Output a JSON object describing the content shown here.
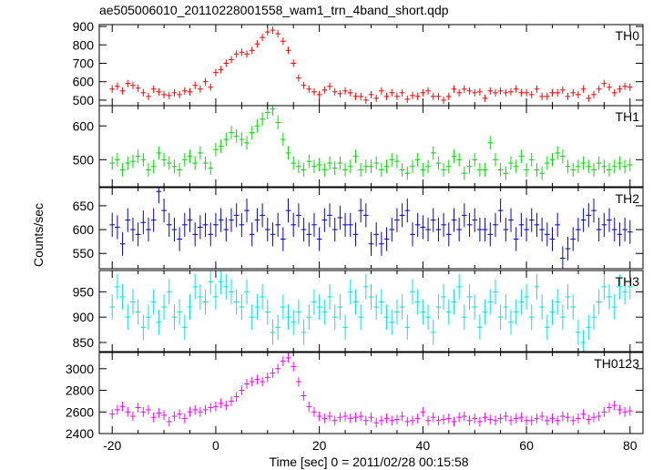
{
  "chart_data": {
    "type": "line",
    "title": "ae505006010_20110228001558_wam1_trn_4band_short.qdp",
    "xlabel": "Time [sec] 0 = 2011/02/28 00:15:58",
    "ylabel": "Counts/sec",
    "xlim": [
      -22.5,
      82.5
    ],
    "x_ticks": [
      -20,
      0,
      20,
      40,
      60,
      80
    ],
    "bin_width": 1,
    "x_start": -20,
    "panels": [
      {
        "name": "TH0",
        "color": "#ff0000",
        "ylim": [
          470,
          910
        ],
        "y_ticks": [
          500,
          600,
          700,
          800,
          900
        ],
        "error": 20,
        "values": [
          560,
          575,
          550,
          590,
          580,
          565,
          540,
          520,
          560,
          545,
          530,
          525,
          540,
          530,
          550,
          545,
          580,
          560,
          600,
          570,
          650,
          665,
          700,
          720,
          750,
          760,
          750,
          770,
          805,
          840,
          870,
          880,
          860,
          820,
          770,
          700,
          620,
          580,
          560,
          545,
          530,
          555,
          575,
          545,
          535,
          550,
          540,
          520,
          520,
          500,
          530,
          510,
          550,
          520,
          540,
          520,
          540,
          505,
          525,
          520,
          540,
          550,
          520,
          520,
          500,
          520,
          560,
          540,
          560,
          550,
          540,
          545,
          510,
          550,
          540,
          550,
          540,
          545,
          560,
          540,
          540,
          530,
          560,
          520,
          520,
          540,
          540,
          555,
          520,
          540,
          530,
          560,
          510,
          530,
          560,
          590,
          570,
          540,
          560,
          575,
          570
        ]
      },
      {
        "name": "TH1",
        "color": "#00dd00",
        "ylim": [
          420,
          660
        ],
        "y_ticks": [
          500,
          600
        ],
        "error": 20,
        "values": [
          490,
          500,
          470,
          490,
          495,
          510,
          500,
          470,
          480,
          520,
          500,
          490,
          480,
          470,
          500,
          510,
          490,
          520,
          490,
          475,
          530,
          540,
          560,
          580,
          570,
          560,
          550,
          580,
          600,
          620,
          640,
          650,
          610,
          560,
          520,
          490,
          480,
          470,
          495,
          480,
          485,
          470,
          490,
          475,
          490,
          470,
          480,
          510,
          470,
          480,
          480,
          490,
          470,
          480,
          500,
          495,
          470,
          460,
          480,
          500,
          470,
          480,
          520,
          490,
          470,
          480,
          510,
          500,
          460,
          480,
          500,
          470,
          470,
          550,
          500,
          470,
          460,
          490,
          480,
          510,
          470,
          500,
          470,
          460,
          490,
          500,
          520,
          510,
          480,
          470,
          480,
          490,
          480,
          470,
          490,
          480,
          470,
          480,
          490,
          480,
          485
        ]
      },
      {
        "name": "TH2",
        "color": "#0000cc",
        "ylim": [
          518,
          688
        ],
        "y_ticks": [
          550,
          600,
          650
        ],
        "error": 25,
        "values": [
          610,
          605,
          570,
          620,
          600,
          590,
          615,
          600,
          620,
          680,
          640,
          610,
          600,
          580,
          610,
          620,
          590,
          605,
          610,
          590,
          610,
          620,
          600,
          620,
          630,
          610,
          640,
          590,
          620,
          630,
          600,
          590,
          610,
          580,
          640,
          610,
          630,
          600,
          590,
          610,
          580,
          620,
          630,
          600,
          625,
          610,
          610,
          590,
          640,
          630,
          570,
          590,
          570,
          580,
          600,
          620,
          630,
          640,
          590,
          610,
          605,
          600,
          620,
          600,
          610,
          590,
          620,
          600,
          630,
          610,
          620,
          600,
          600,
          590,
          610,
          640,
          600,
          620,
          580,
          610,
          600,
          620,
          610,
          600,
          590,
          580,
          610,
          540,
          560,
          580,
          600,
          620,
          630,
          640,
          600,
          610,
          620,
          600,
          590,
          600,
          595
        ]
      },
      {
        "name": "TH3",
        "color": "#00e5e5",
        "ylim": [
          832,
          992
        ],
        "y_ticks": [
          850,
          900,
          950
        ],
        "error": 25,
        "values": [
          920,
          960,
          940,
          900,
          930,
          910,
          880,
          900,
          930,
          890,
          920,
          950,
          900,
          910,
          880,
          920,
          960,
          940,
          930,
          970,
          940,
          970,
          960,
          950,
          930,
          920,
          950,
          900,
          920,
          940,
          910,
          870,
          880,
          920,
          900,
          890,
          910,
          870,
          900,
          930,
          920,
          910,
          940,
          900,
          920,
          880,
          950,
          930,
          900,
          960,
          940,
          920,
          930,
          900,
          890,
          910,
          920,
          880,
          950,
          930,
          910,
          900,
          870,
          920,
          940,
          910,
          930,
          960,
          900,
          940,
          920,
          880,
          910,
          930,
          950,
          900,
          920,
          890,
          910,
          930,
          940,
          900,
          960,
          920,
          880,
          910,
          930,
          900,
          940,
          920,
          870,
          850,
          880,
          900,
          930,
          960,
          940,
          920,
          960,
          950,
          960
        ]
      },
      {
        "name": "TH0123",
        "color": "#ff00ff",
        "ylim": [
          2400,
          3150
        ],
        "y_ticks": [
          2400,
          2600,
          2800,
          3000
        ],
        "error": 45,
        "values": [
          2580,
          2620,
          2650,
          2600,
          2560,
          2640,
          2600,
          2620,
          2550,
          2590,
          2570,
          2510,
          2560,
          2580,
          2540,
          2600,
          2620,
          2600,
          2620,
          2640,
          2650,
          2680,
          2660,
          2700,
          2740,
          2800,
          2860,
          2880,
          2900,
          2880,
          2920,
          2960,
          3000,
          3070,
          3100,
          3020,
          2880,
          2750,
          2650,
          2600,
          2560,
          2540,
          2560,
          2520,
          2550,
          2560,
          2540,
          2550,
          2560,
          2520,
          2550,
          2500,
          2520,
          2540,
          2520,
          2530,
          2560,
          2510,
          2520,
          2540,
          2600,
          2520,
          2550,
          2520,
          2530,
          2540,
          2510,
          2550,
          2560,
          2520,
          2540,
          2510,
          2550,
          2530,
          2520,
          2540,
          2560,
          2520,
          2540,
          2550,
          2520,
          2520,
          2540,
          2560,
          2520,
          2540,
          2520,
          2560,
          2550,
          2520,
          2540,
          2580,
          2530,
          2550,
          2560,
          2600,
          2640,
          2660,
          2620,
          2600,
          2610
        ]
      }
    ]
  }
}
